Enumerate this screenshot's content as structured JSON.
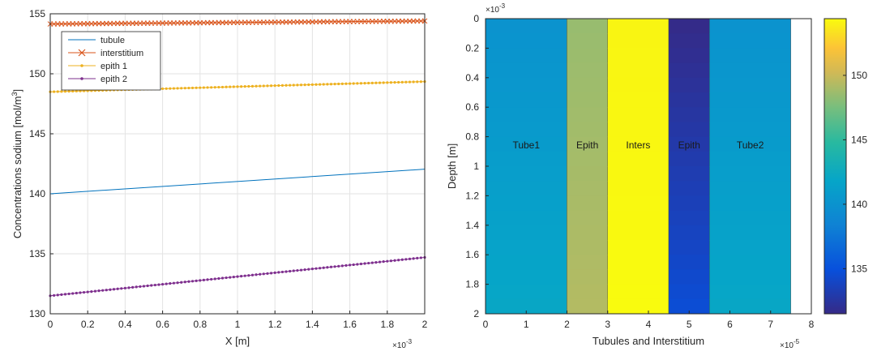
{
  "chart_data": [
    {
      "type": "line",
      "xlabel": "X [m]",
      "ylabel_main": "Concentrations sodium [mol/m",
      "ylabel_sup": "3",
      "ylabel_end": "]",
      "x_multiplier": "×10",
      "x_multiplier_exp": "-3",
      "xlim": [
        0,
        0.002
      ],
      "ylim": [
        130,
        155
      ],
      "xticks": [
        "0",
        "0.2",
        "0.4",
        "0.6",
        "0.8",
        "1",
        "1.2",
        "1.4",
        "1.6",
        "1.8",
        "2"
      ],
      "yticks": [
        "130",
        "135",
        "140",
        "145",
        "150",
        "155"
      ],
      "grid": true,
      "legend_position": "top-left",
      "series": [
        {
          "name": "tubule",
          "color": "#0072BD",
          "marker": "none",
          "x": [
            0,
            0.002
          ],
          "y": [
            140.0,
            142.05
          ]
        },
        {
          "name": "interstitium",
          "color": "#D95319",
          "marker": "x",
          "x": [
            0,
            0.002
          ],
          "y": [
            154.15,
            154.4
          ]
        },
        {
          "name": "epith 1",
          "color": "#EDB120",
          "marker": "dot",
          "x": [
            0,
            0.002
          ],
          "y": [
            148.5,
            149.35
          ]
        },
        {
          "name": "epith 2",
          "color": "#7E2F8E",
          "marker": "dot",
          "x": [
            0,
            0.002
          ],
          "y": [
            131.5,
            134.7
          ]
        }
      ]
    },
    {
      "type": "heatmap",
      "xlabel": "Tubules and Interstitium",
      "ylabel": "Depth [m]",
      "x_multiplier": "×10",
      "x_multiplier_exp": "-5",
      "y_multiplier": "×10",
      "y_multiplier_exp": "-3",
      "xticks": [
        "0",
        "1",
        "2",
        "3",
        "4",
        "5",
        "6",
        "7",
        "8"
      ],
      "yticks": [
        "0",
        "0.2",
        "0.4",
        "0.6",
        "0.8",
        "1",
        "1.2",
        "1.4",
        "1.6",
        "1.8",
        "2"
      ],
      "xlim": [
        0,
        8
      ],
      "ylim": [
        0,
        2
      ],
      "colorbar_ticks": [
        "135",
        "140",
        "145",
        "150"
      ],
      "colorbar_range": [
        131.5,
        154.4
      ],
      "regions": [
        {
          "label": "Tube1",
          "x0": 0,
          "x1": 2,
          "top": 140.0,
          "bottom": 142.05
        },
        {
          "label": "Epith",
          "x0": 2,
          "x1": 3,
          "top": 148.5,
          "bottom": 149.35
        },
        {
          "label": "Inters",
          "x0": 3,
          "x1": 4.5,
          "top": 154.15,
          "bottom": 154.4
        },
        {
          "label": "Epith",
          "x0": 4.5,
          "x1": 5.5,
          "top": 131.5,
          "bottom": 134.7
        },
        {
          "label": "Tube2",
          "x0": 5.5,
          "x1": 7.5,
          "top": 140.0,
          "bottom": 142.05
        }
      ]
    }
  ]
}
